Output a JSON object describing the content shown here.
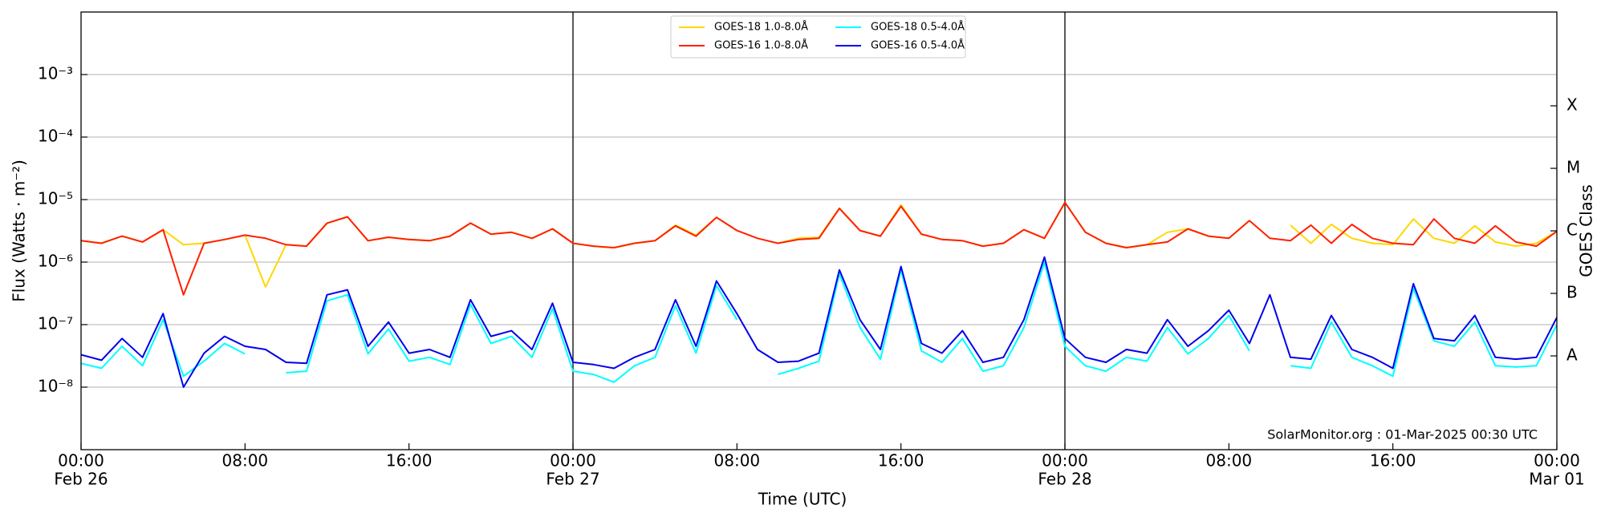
{
  "chart_data": {
    "type": "line",
    "xlabel": "Time (UTC)",
    "ylabel": "Flux (Watts · m⁻²)",
    "y2label": "GOES Class",
    "annotation": "SolarMonitor.org : 01-Mar-2025 00:30 UTC",
    "yscale": "log",
    "grid": true,
    "legend": "upper center",
    "xlim": [
      0,
      72
    ],
    "xticks": [
      {
        "value": 0,
        "label": "00:00",
        "date": "Feb 26"
      },
      {
        "value": 8,
        "label": "08:00"
      },
      {
        "value": 16,
        "label": "16:00"
      },
      {
        "value": 24,
        "label": "00:00",
        "date": "Feb 27"
      },
      {
        "value": 32,
        "label": "08:00"
      },
      {
        "value": 40,
        "label": "16:00"
      },
      {
        "value": 48,
        "label": "00:00",
        "date": "Feb 28"
      },
      {
        "value": 56,
        "label": "08:00"
      },
      {
        "value": 64,
        "label": "16:00"
      },
      {
        "value": 72,
        "label": "00:00",
        "date": "Mar 01"
      }
    ],
    "vlines": [
      24,
      48
    ],
    "ylim": [
      1e-09,
      0.01
    ],
    "yticks": [
      {
        "value": 1e-08,
        "label": "10⁻⁸"
      },
      {
        "value": 1e-07,
        "label": "10⁻⁷"
      },
      {
        "value": 1e-06,
        "label": "10⁻⁶"
      },
      {
        "value": 1e-05,
        "label": "10⁻⁵"
      },
      {
        "value": 0.0001,
        "label": "10⁻⁴"
      },
      {
        "value": 0.001,
        "label": "10⁻³"
      }
    ],
    "y2lim": [
      1e-09,
      0.01
    ],
    "y2ticks": [
      {
        "value": 3.16e-08,
        "label": "A"
      },
      {
        "value": 3.16e-07,
        "label": "B"
      },
      {
        "value": 3.16e-06,
        "label": "C"
      },
      {
        "value": 3.16e-05,
        "label": "M"
      },
      {
        "value": 0.000316,
        "label": "X"
      }
    ],
    "x": [
      0,
      1,
      2,
      3,
      4,
      5,
      6,
      7,
      8,
      9,
      10,
      11,
      12,
      13,
      14,
      15,
      16,
      17,
      18,
      19,
      20,
      21,
      22,
      23,
      24,
      25,
      26,
      27,
      28,
      29,
      30,
      31,
      32,
      33,
      34,
      35,
      36,
      37,
      38,
      39,
      40,
      41,
      42,
      43,
      44,
      45,
      46,
      47,
      48,
      49,
      50,
      51,
      52,
      53,
      54,
      55,
      56,
      57,
      58,
      59,
      60,
      61,
      62,
      63,
      64,
      65,
      66,
      67,
      68,
      69,
      70,
      71,
      72
    ],
    "series": [
      {
        "name": "GOES-18 1.0-8.0Å",
        "color": "#ffd700",
        "values": [
          2.2e-06,
          2e-06,
          2.6e-06,
          2.1e-06,
          3.3e-06,
          1.9e-06,
          2e-06,
          2.3e-06,
          2.7e-06,
          4e-07,
          1.9e-06,
          1.8e-06,
          4.2e-06,
          5.3e-06,
          2.2e-06,
          2.5e-06,
          2.3e-06,
          2.2e-06,
          2.6e-06,
          4.2e-06,
          2.8e-06,
          3e-06,
          2.4e-06,
          3.4e-06,
          2e-06,
          1.8e-06,
          1.7e-06,
          2e-06,
          2.2e-06,
          3.9e-06,
          2.7e-06,
          5.2e-06,
          3.2e-06,
          null,
          2e-06,
          2.4e-06,
          2.5e-06,
          7.3e-06,
          3.2e-06,
          2.6e-06,
          8.2e-06,
          2.8e-06,
          2.3e-06,
          2.2e-06,
          1.8e-06,
          2e-06,
          3.3e-06,
          2.4e-06,
          9e-06,
          3e-06,
          2e-06,
          1.7e-06,
          1.9e-06,
          3e-06,
          3.4e-06,
          2.6e-06,
          2.4e-06,
          4.6e-06,
          null,
          3.9e-06,
          2e-06,
          4e-06,
          2.4e-06,
          2e-06,
          1.9e-06,
          4.9e-06,
          2.4e-06,
          2e-06,
          3.8e-06,
          2.1e-06,
          1.8e-06,
          2e-06,
          3.1e-06
        ]
      },
      {
        "name": "GOES-16 1.0-8.0Å",
        "color": "#ff2000",
        "values": [
          2.2e-06,
          2e-06,
          2.6e-06,
          2.1e-06,
          3.3e-06,
          3e-07,
          2e-06,
          2.3e-06,
          2.7e-06,
          2.4e-06,
          1.9e-06,
          1.8e-06,
          4.2e-06,
          5.3e-06,
          2.2e-06,
          2.5e-06,
          2.3e-06,
          2.2e-06,
          2.6e-06,
          4.2e-06,
          2.8e-06,
          3e-06,
          2.4e-06,
          3.4e-06,
          2e-06,
          1.8e-06,
          1.7e-06,
          2e-06,
          2.2e-06,
          3.8e-06,
          2.6e-06,
          5.2e-06,
          3.2e-06,
          2.4e-06,
          2e-06,
          2.3e-06,
          2.4e-06,
          7.2e-06,
          3.2e-06,
          2.6e-06,
          7.8e-06,
          2.8e-06,
          2.3e-06,
          2.2e-06,
          1.8e-06,
          2e-06,
          3.3e-06,
          2.4e-06,
          9e-06,
          3e-06,
          2e-06,
          1.7e-06,
          1.9e-06,
          2.1e-06,
          3.4e-06,
          2.6e-06,
          2.4e-06,
          4.6e-06,
          2.4e-06,
          2.2e-06,
          3.9e-06,
          2e-06,
          4e-06,
          2.4e-06,
          2e-06,
          1.9e-06,
          4.9e-06,
          2.4e-06,
          2e-06,
          3.8e-06,
          2.1e-06,
          1.8e-06,
          3.1e-06
        ]
      },
      {
        "name": "GOES-18 0.5-4.0Å",
        "color": "#00ffff",
        "values": [
          2.4e-08,
          2e-08,
          4.5e-08,
          2.2e-08,
          1.2e-07,
          1.5e-08,
          2.6e-08,
          5e-08,
          3.4e-08,
          null,
          1.7e-08,
          1.8e-08,
          2.4e-07,
          3e-07,
          3.4e-08,
          8.5e-08,
          2.6e-08,
          3e-08,
          2.3e-08,
          2.1e-07,
          5e-08,
          6.5e-08,
          3e-08,
          1.8e-07,
          1.8e-08,
          1.6e-08,
          1.2e-08,
          2.2e-08,
          3e-08,
          2e-07,
          3.5e-08,
          4.2e-07,
          1.2e-07,
          null,
          1.6e-08,
          2e-08,
          2.6e-08,
          6.5e-07,
          9e-08,
          2.8e-08,
          7.5e-07,
          3.8e-08,
          2.5e-08,
          6e-08,
          1.8e-08,
          2.2e-08,
          9e-08,
          1e-06,
          4.5e-08,
          2.2e-08,
          1.8e-08,
          3e-08,
          2.6e-08,
          9e-08,
          3.4e-08,
          6e-08,
          1.4e-07,
          3.8e-08,
          null,
          2.2e-08,
          2e-08,
          1.1e-07,
          3e-08,
          2.2e-08,
          1.5e-08,
          3.8e-07,
          5.5e-08,
          4.5e-08,
          1.1e-07,
          2.2e-08,
          2.1e-08,
          2.2e-08,
          1e-07
        ]
      },
      {
        "name": "GOES-16 0.5-4.0Å",
        "color": "#0000ee",
        "values": [
          3.3e-08,
          2.7e-08,
          6e-08,
          3e-08,
          1.5e-07,
          1e-08,
          3.5e-08,
          6.5e-08,
          4.5e-08,
          4e-08,
          2.5e-08,
          2.4e-08,
          3e-07,
          3.6e-07,
          4.5e-08,
          1.1e-07,
          3.5e-08,
          4e-08,
          3e-08,
          2.5e-07,
          6.5e-08,
          8e-08,
          4e-08,
          2.2e-07,
          2.5e-08,
          2.3e-08,
          2e-08,
          3e-08,
          4e-08,
          2.5e-07,
          4.5e-08,
          5e-07,
          1.5e-07,
          4e-08,
          2.5e-08,
          2.6e-08,
          3.5e-08,
          7.5e-07,
          1.2e-07,
          4e-08,
          8.5e-07,
          5e-08,
          3.5e-08,
          8e-08,
          2.5e-08,
          3e-08,
          1.2e-07,
          1.2e-06,
          6e-08,
          3e-08,
          2.5e-08,
          4e-08,
          3.5e-08,
          1.2e-07,
          4.5e-08,
          8e-08,
          1.7e-07,
          5e-08,
          3e-07,
          3e-08,
          2.8e-08,
          1.4e-07,
          4e-08,
          3e-08,
          2e-08,
          4.5e-07,
          6e-08,
          5.5e-08,
          1.4e-07,
          3e-08,
          2.8e-08,
          3e-08,
          1.3e-07
        ]
      }
    ]
  }
}
